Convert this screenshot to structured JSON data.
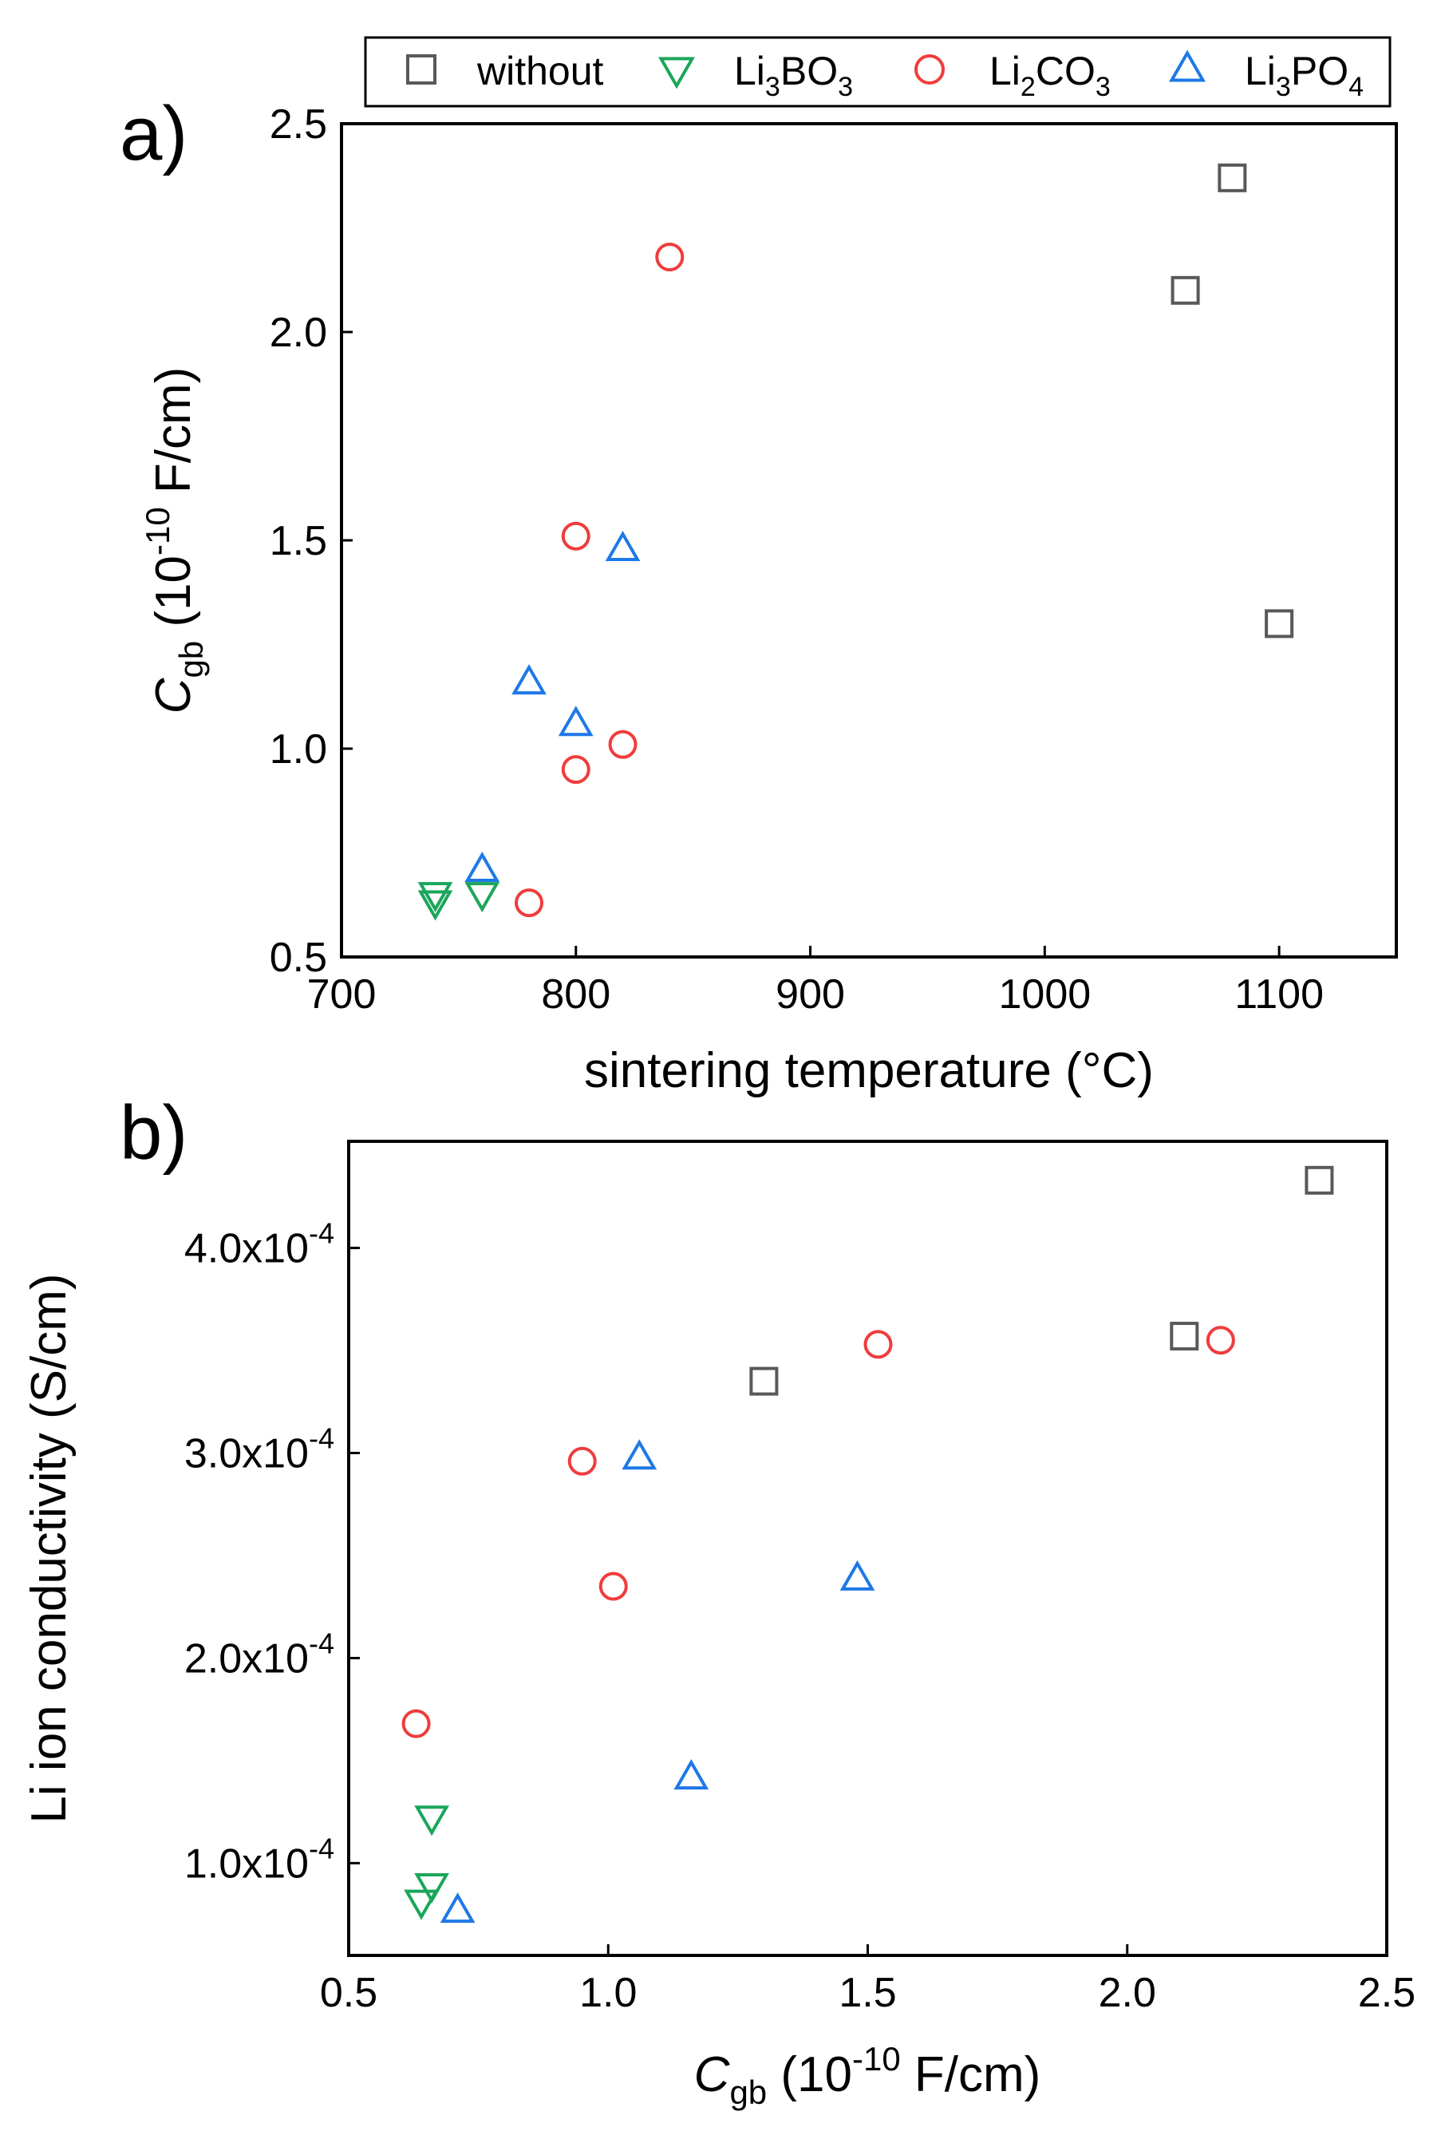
{
  "legend": {
    "entries": [
      {
        "key": "without",
        "label": "without",
        "marker": "square",
        "color": "#595959"
      },
      {
        "key": "li3bo3",
        "label": "Li3BO3",
        "base": "Li",
        "sub1": "3",
        "mid": "BO",
        "sub2": "3",
        "marker": "triangle-down",
        "color": "#1aa65a"
      },
      {
        "key": "li2co3",
        "label": "Li2CO3",
        "base": "Li",
        "sub1": "2",
        "mid": "CO",
        "sub2": "3",
        "marker": "circle",
        "color": "#f03c3c"
      },
      {
        "key": "li3po4",
        "label": "Li3PO4",
        "base": "Li",
        "sub1": "3",
        "mid": "PO",
        "sub2": "4",
        "marker": "triangle-up",
        "color": "#1e78e6"
      }
    ]
  },
  "chart_data": [
    {
      "panel_label": "a)",
      "type": "scatter",
      "title": "",
      "xlabel": "sintering temperature (°C)",
      "ylabel": "Cgb (10-10 F/cm)",
      "ylabel_parts": {
        "sym": "C",
        "sub": "gb",
        "pre": " (10",
        "exp": "-10",
        "post": " F/cm)"
      },
      "xlim": [
        700,
        1150
      ],
      "ylim": [
        0.5,
        2.5
      ],
      "xticks": [
        700,
        800,
        900,
        1000,
        1100
      ],
      "xtick_labels": [
        "700",
        "800",
        "900",
        "1000",
        "1100"
      ],
      "yticks": [
        0.5,
        1.0,
        1.5,
        2.0,
        2.5
      ],
      "ytick_labels": [
        "0.5",
        "1.0",
        "1.5",
        "2.0",
        "2.5"
      ],
      "grid": false,
      "series": [
        {
          "name": "without",
          "points": [
            [
              1060,
              2.1
            ],
            [
              1080,
              2.37
            ],
            [
              1100,
              1.3
            ]
          ]
        },
        {
          "name": "Li3BO3",
          "points": [
            [
              740,
              0.65
            ],
            [
              740,
              0.63
            ],
            [
              760,
              0.65
            ]
          ]
        },
        {
          "name": "Li2CO3",
          "points": [
            [
              840,
              2.18
            ],
            [
              800,
              1.51
            ],
            [
              800,
              0.95
            ],
            [
              820,
              1.01
            ],
            [
              780,
              0.63
            ]
          ]
        },
        {
          "name": "Li3PO4",
          "points": [
            [
              820,
              1.48
            ],
            [
              780,
              1.16
            ],
            [
              800,
              1.06
            ],
            [
              760,
              0.71
            ]
          ]
        }
      ]
    },
    {
      "panel_label": "b)",
      "type": "scatter",
      "title": "",
      "xlabel": "Cgb (10-10 F/cm)",
      "xlabel_parts": {
        "sym": "C",
        "sub": "gb",
        "pre": " (10",
        "exp": "-10",
        "post": " F/cm)"
      },
      "ylabel": "Li ion conductivity (S/cm)",
      "xlim": [
        0.5,
        2.5
      ],
      "ylim": [
        5.5e-05,
        0.000452
      ],
      "xticks": [
        0.5,
        1.0,
        1.5,
        2.0,
        2.5
      ],
      "xtick_labels": [
        "0.5",
        "1.0",
        "1.5",
        "2.0",
        "2.5"
      ],
      "yticks": [
        0.0001,
        0.0002,
        0.0003,
        0.0004
      ],
      "ytick_labels": [
        {
          "mant": "1.0x10",
          "exp": "-4"
        },
        {
          "mant": "2.0x10",
          "exp": "-4"
        },
        {
          "mant": "3.0x10",
          "exp": "-4"
        },
        {
          "mant": "4.0x10",
          "exp": "-4"
        }
      ],
      "grid": false,
      "series": [
        {
          "name": "without",
          "points": [
            [
              1.3,
              0.000335
            ],
            [
              2.11,
              0.000357
            ],
            [
              2.37,
              0.000433
            ]
          ]
        },
        {
          "name": "Li3BO3",
          "points": [
            [
              0.66,
              0.000122
            ],
            [
              0.66,
              8.9e-05
            ],
            [
              0.64,
              8.1e-05
            ]
          ]
        },
        {
          "name": "Li2CO3",
          "points": [
            [
              0.63,
              0.000168
            ],
            [
              0.95,
              0.000296
            ],
            [
              1.01,
              0.000235
            ],
            [
              1.52,
              0.000353
            ],
            [
              2.18,
              0.000355
            ]
          ]
        },
        {
          "name": "Li3PO4",
          "points": [
            [
              0.71,
              7.7e-05
            ],
            [
              1.06,
              0.000298
            ],
            [
              1.16,
              0.000142
            ],
            [
              1.48,
              0.000239
            ]
          ]
        }
      ]
    }
  ]
}
